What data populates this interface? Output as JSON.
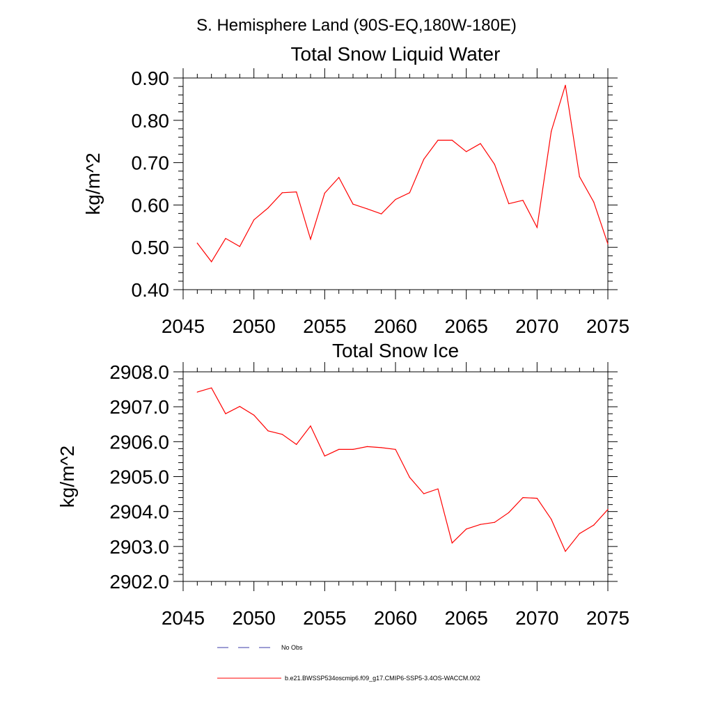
{
  "figure": {
    "title": "S. Hemisphere Land (90S-EQ,180W-180E)"
  },
  "colors": {
    "model": "#ff0000",
    "obs": "#3b3ba8",
    "axis": "#000000"
  },
  "legend": {
    "items": [
      {
        "label": "No Obs",
        "style": "dashed",
        "color": "#3b3ba8"
      },
      {
        "label": "b.e21.BWSSP534oscmip6.f09_g17.CMIP6-SSP5-3.4OS-WACCM.002",
        "style": "solid",
        "color": "#ff0000"
      }
    ]
  },
  "chart_data": [
    {
      "type": "line",
      "title": "Total Snow Liquid Water",
      "xlabel": "",
      "ylabel": "kg/m^2",
      "xlim": [
        2045,
        2075
      ],
      "ylim": [
        0.4,
        0.9
      ],
      "xticks": [
        2045,
        2050,
        2055,
        2060,
        2065,
        2070,
        2075
      ],
      "yticks": [
        0.4,
        0.5,
        0.6,
        0.7,
        0.8,
        0.9
      ],
      "ytick_labels": [
        "0.40",
        "0.50",
        "0.60",
        "0.70",
        "0.80",
        "0.90"
      ],
      "grid": false,
      "series": [
        {
          "name": "b.e21.BWSSP534oscmip6.f09_g17.CMIP6-SSP5-3.4OS-WACCM.002",
          "x": [
            2046,
            2047,
            2048,
            2049,
            2050,
            2051,
            2052,
            2053,
            2054,
            2055,
            2056,
            2057,
            2058,
            2059,
            2060,
            2061,
            2062,
            2063,
            2064,
            2065,
            2066,
            2067,
            2068,
            2069,
            2070,
            2071,
            2072,
            2073,
            2074,
            2075
          ],
          "values": [
            0.51,
            0.466,
            0.521,
            0.502,
            0.565,
            0.593,
            0.629,
            0.631,
            0.519,
            0.628,
            0.665,
            0.602,
            0.591,
            0.579,
            0.613,
            0.629,
            0.708,
            0.753,
            0.753,
            0.726,
            0.745,
            0.696,
            0.603,
            0.611,
            0.547,
            0.774,
            0.883,
            0.667,
            0.607,
            0.508
          ]
        }
      ]
    },
    {
      "type": "line",
      "title": "Total Snow Ice",
      "xlabel": "",
      "ylabel": "kg/m^2",
      "xlim": [
        2045,
        2075
      ],
      "ylim": [
        2902.0,
        2908.0
      ],
      "xticks": [
        2045,
        2050,
        2055,
        2060,
        2065,
        2070,
        2075
      ],
      "yticks": [
        2902.0,
        2903.0,
        2904.0,
        2905.0,
        2906.0,
        2907.0,
        2908.0
      ],
      "ytick_labels": [
        "2902.0",
        "2903.0",
        "2904.0",
        "2905.0",
        "2906.0",
        "2907.0",
        "2908.0"
      ],
      "grid": false,
      "series": [
        {
          "name": "b.e21.BWSSP534oscmip6.f09_g17.CMIP6-SSP5-3.4OS-WACCM.002",
          "x": [
            2046,
            2047,
            2048,
            2049,
            2050,
            2051,
            2052,
            2053,
            2054,
            2055,
            2056,
            2057,
            2058,
            2059,
            2060,
            2061,
            2062,
            2063,
            2064,
            2065,
            2066,
            2067,
            2068,
            2069,
            2070,
            2071,
            2072,
            2073,
            2074,
            2075
          ],
          "values": [
            2907.42,
            2907.54,
            2906.8,
            2907.01,
            2906.76,
            2906.31,
            2906.21,
            2905.92,
            2906.45,
            2905.59,
            2905.78,
            2905.78,
            2905.86,
            2905.83,
            2905.78,
            2904.98,
            2904.51,
            2904.65,
            2903.1,
            2903.5,
            2903.63,
            2903.69,
            2903.97,
            2904.4,
            2904.38,
            2903.78,
            2902.86,
            2903.37,
            2903.61,
            2904.06
          ]
        }
      ]
    }
  ]
}
